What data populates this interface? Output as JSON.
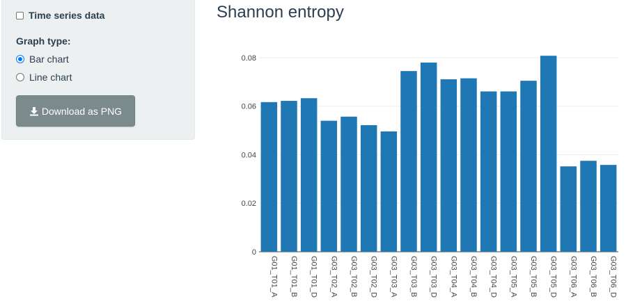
{
  "sidebar": {
    "timeseries_label": "Time series data",
    "timeseries_checked": false,
    "graph_type_label": "Graph type:",
    "radios": [
      {
        "label": "Bar chart",
        "checked": true
      },
      {
        "label": "Line chart",
        "checked": false
      }
    ],
    "download_label": "Download as PNG",
    "download_icon": "download-icon"
  },
  "main": {
    "title": "Shannon entropy"
  },
  "colors": {
    "bar": "#1f77b4",
    "sidebar_bg": "#ecf0f1",
    "button_bg": "#7b8a8b",
    "radio_accent": "#0075ff",
    "title": "#2c3e50"
  },
  "chart_data": {
    "type": "bar",
    "title": "",
    "xlabel": "",
    "ylabel": "",
    "ylim": [
      0,
      0.082
    ],
    "yticks": [
      0,
      0.02,
      0.04,
      0.06,
      0.08
    ],
    "ytick_labels": [
      "0",
      "0.02",
      "0.04",
      "0.06",
      "0.08"
    ],
    "grid": true,
    "categories": [
      "G01_T01_A",
      "G01_T01_B",
      "G01_T01_D",
      "G03_T02_A",
      "G03_T02_B",
      "G03_T02_D",
      "G03_T03_A",
      "G03_T03_B",
      "G03_T03_D",
      "G03_T04_A",
      "G03_T04_B",
      "G03_T04_D",
      "G03_T05_A",
      "G03_T05_B",
      "G03_T05_D",
      "G03_T06_A",
      "G03_T06_B",
      "G03_T06_D"
    ],
    "values": [
      0.0617,
      0.0622,
      0.0633,
      0.054,
      0.0557,
      0.0522,
      0.0496,
      0.0745,
      0.078,
      0.0711,
      0.0715,
      0.0661,
      0.0661,
      0.0705,
      0.0808,
      0.0352,
      0.0375,
      0.0358
    ]
  }
}
